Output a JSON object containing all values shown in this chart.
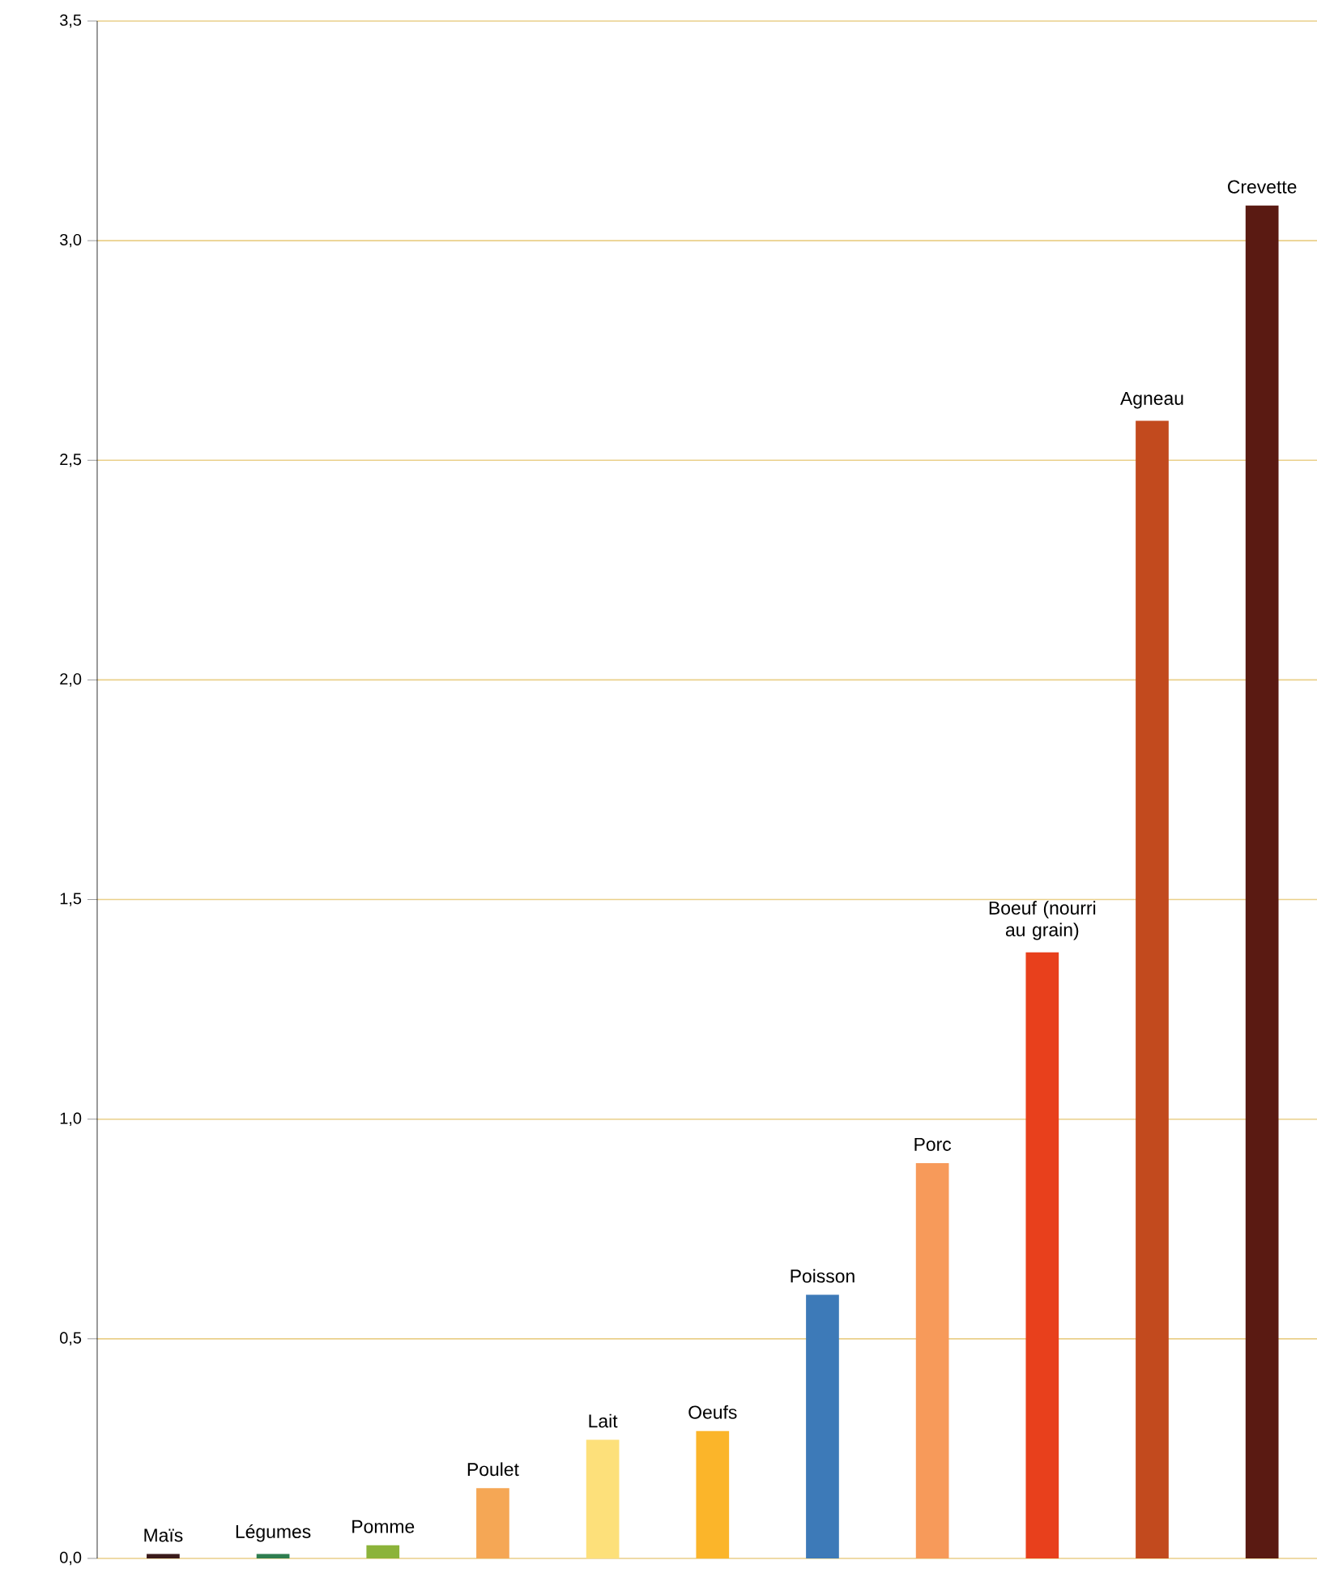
{
  "chart_data": {
    "type": "bar",
    "categories": [
      "Maïs",
      "Légumes",
      "Pomme",
      "Poulet",
      "Lait",
      "Oeufs",
      "Poisson",
      "Porc",
      "Boeuf (nourri au grain)",
      "Agneau",
      "Crevette"
    ],
    "values": [
      0.01,
      0.01,
      0.03,
      0.16,
      0.27,
      0.29,
      0.6,
      0.9,
      1.38,
      2.59,
      3.08
    ],
    "colors": [
      "#3a1a1a",
      "#2e7d4f",
      "#8cb33a",
      "#f5a755",
      "#fde07a",
      "#fbb52a",
      "#3d7ab8",
      "#f79a5a",
      "#e8401c",
      "#c24a1e",
      "#5a1a12"
    ],
    "ylim": [
      0,
      3.5
    ],
    "yticks": [
      {
        "value": 0,
        "label": "0,0"
      },
      {
        "value": 0.5,
        "label": "0,5"
      },
      {
        "value": 1,
        "label": "1,0"
      },
      {
        "value": 1.5,
        "label": "1,5"
      },
      {
        "value": 2,
        "label": "2,0"
      },
      {
        "value": 2.5,
        "label": "2,5"
      },
      {
        "value": 3,
        "label": "3,0"
      },
      {
        "value": 3.5,
        "label": "3,5"
      }
    ],
    "grid": "y"
  }
}
